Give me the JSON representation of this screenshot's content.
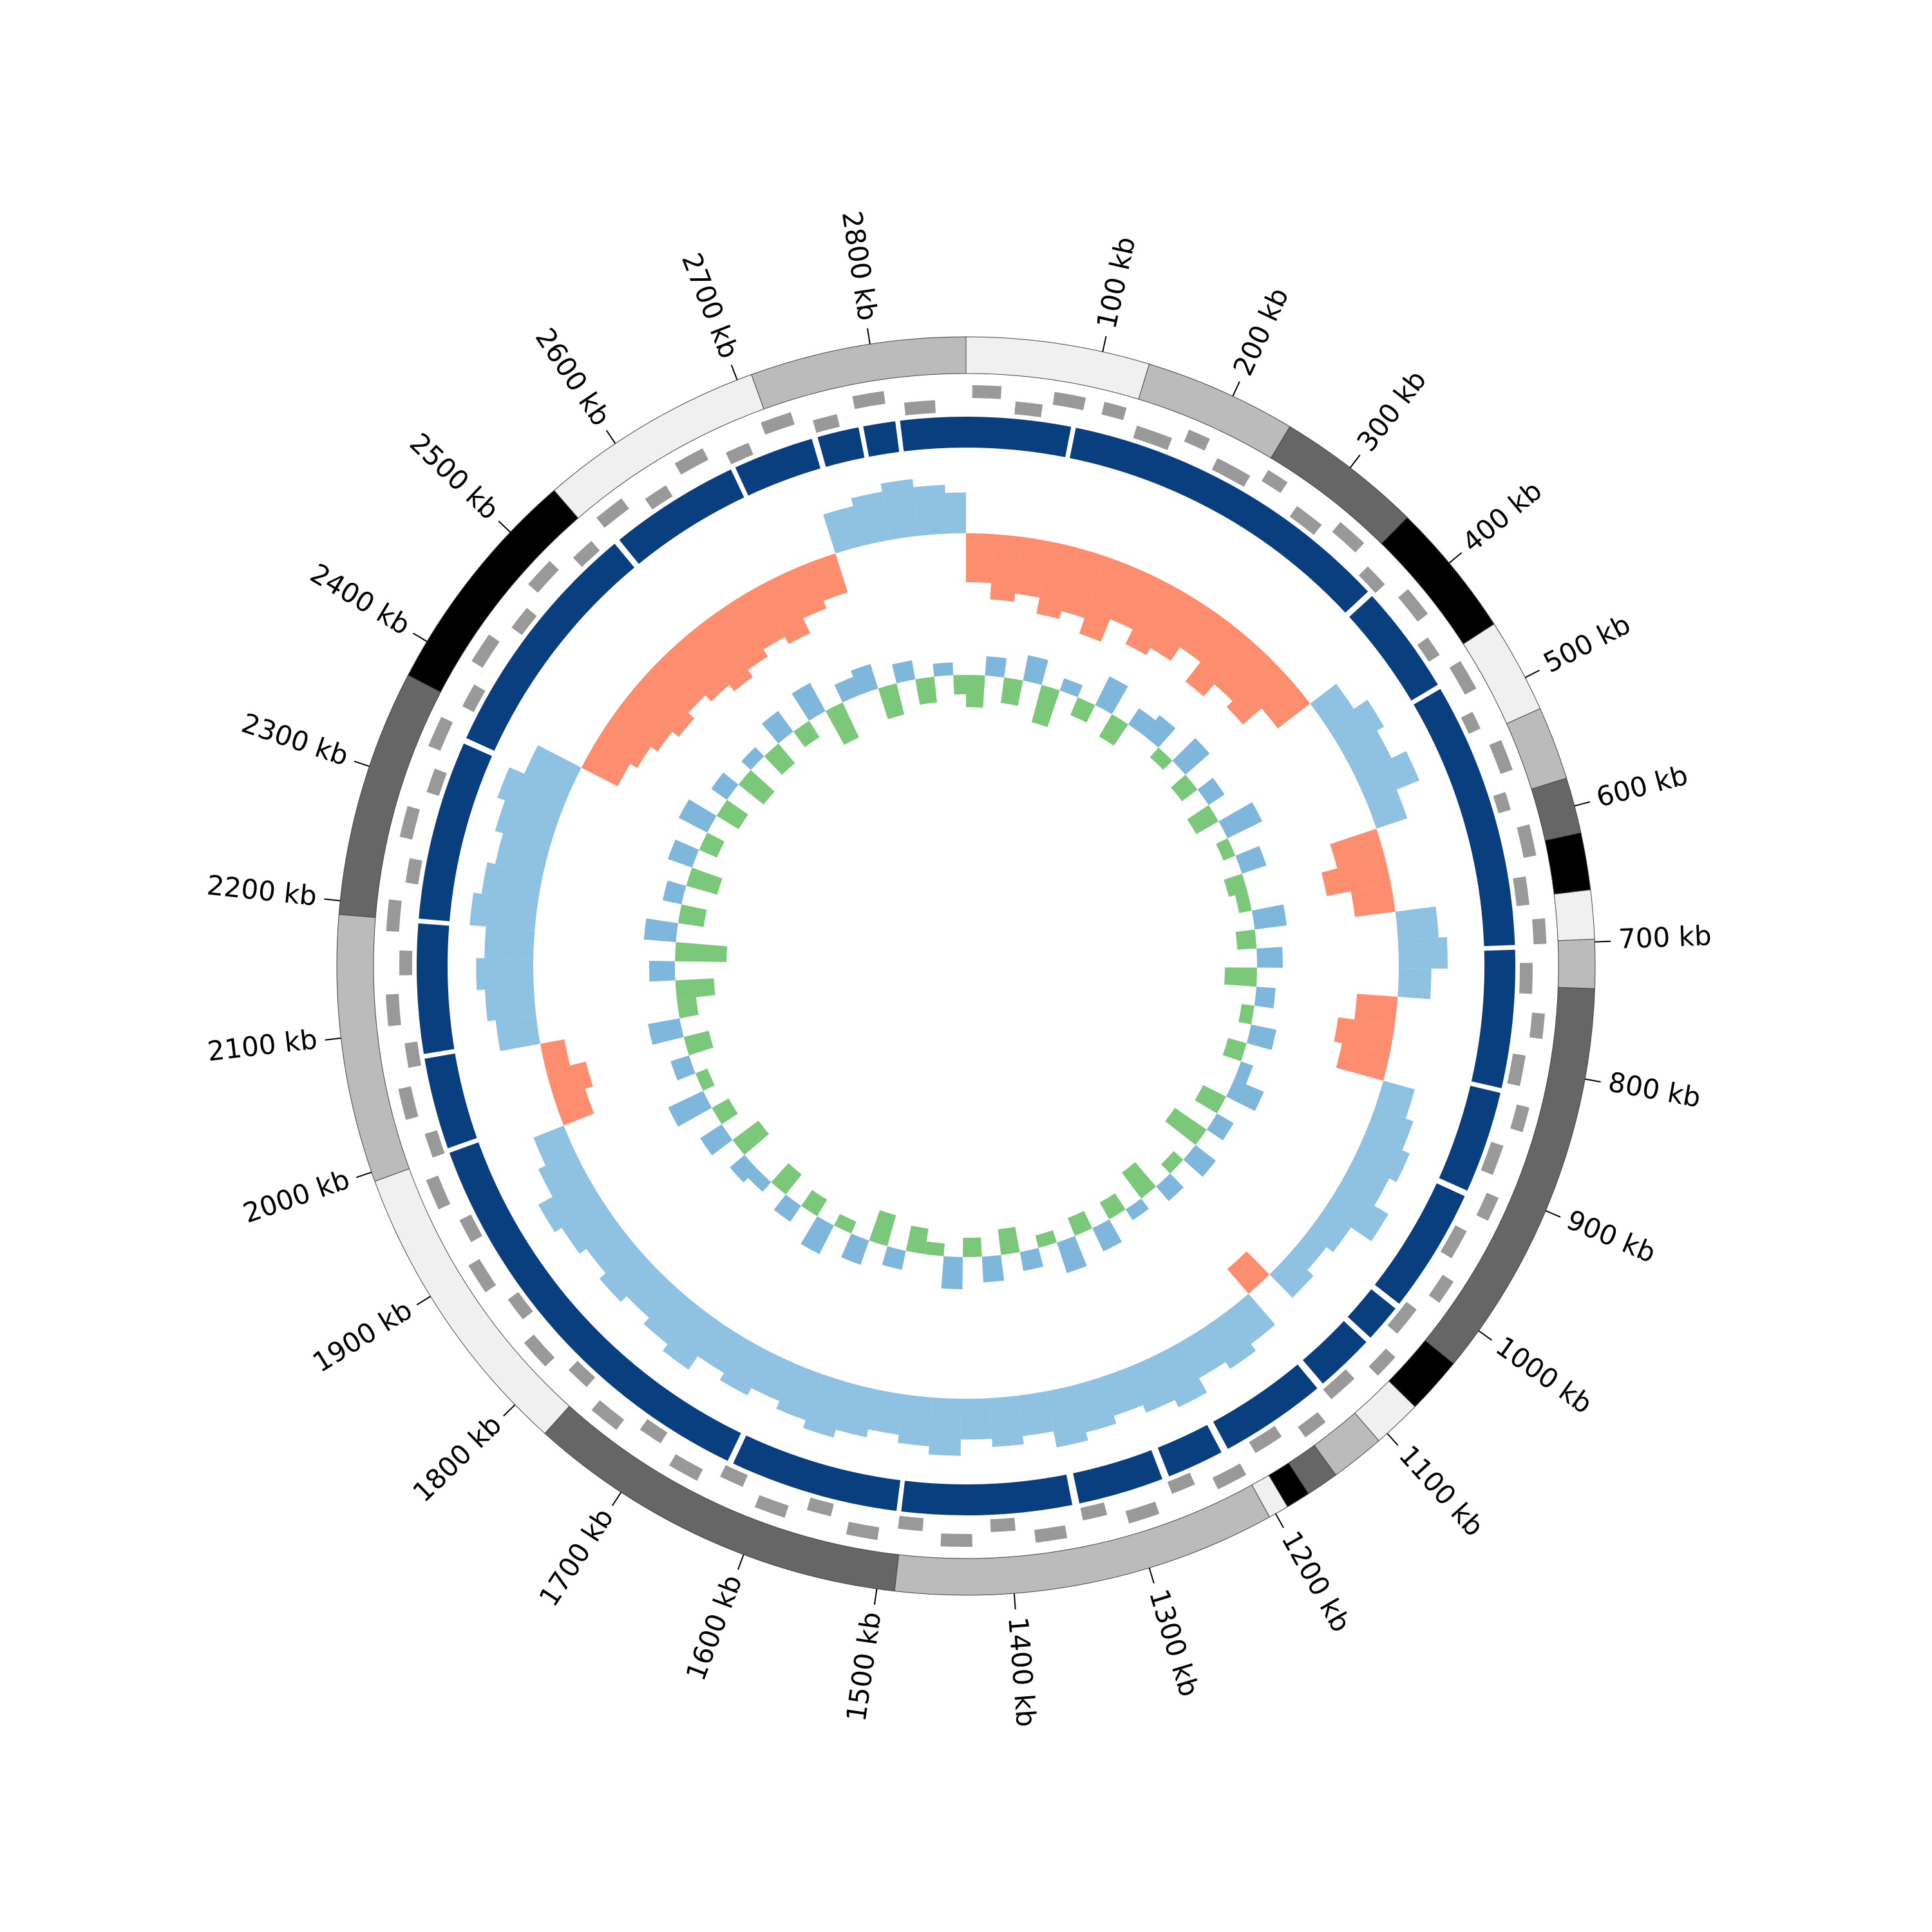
{
  "chart_data": {
    "type": "circular-genome",
    "xlim": [
      0,
      2870
    ],
    "xticks": [
      {
        "value": 100,
        "label": "100 kb"
      },
      {
        "value": 200,
        "label": "200 kb"
      },
      {
        "value": 300,
        "label": "300 kb"
      },
      {
        "value": 400,
        "label": "400 kb"
      },
      {
        "value": 500,
        "label": "500 kb"
      },
      {
        "value": 600,
        "label": "600 kb"
      },
      {
        "value": 700,
        "label": "700 kb"
      },
      {
        "value": 800,
        "label": "800 kb"
      },
      {
        "value": 900,
        "label": "900 kb"
      },
      {
        "value": 1000,
        "label": "1000 kb"
      },
      {
        "value": 1100,
        "label": "1100 kb"
      },
      {
        "value": 1200,
        "label": "1200 kb"
      },
      {
        "value": 1300,
        "label": "1300 kb"
      },
      {
        "value": 1400,
        "label": "1400 kb"
      },
      {
        "value": 1500,
        "label": "1500 kb"
      },
      {
        "value": 1600,
        "label": "1600 kb"
      },
      {
        "value": 1700,
        "label": "1700 kb"
      },
      {
        "value": 1800,
        "label": "1800 kb"
      },
      {
        "value": 1900,
        "label": "1900 kb"
      },
      {
        "value": 2000,
        "label": "2000 kb"
      },
      {
        "value": 2100,
        "label": "2100 kb"
      },
      {
        "value": 2200,
        "label": "2200 kb"
      },
      {
        "value": 2300,
        "label": "2300 kb"
      },
      {
        "value": 2400,
        "label": "2400 kb"
      },
      {
        "value": 2500,
        "label": "2500 kb"
      },
      {
        "value": 2600,
        "label": "2600 kb"
      },
      {
        "value": 2700,
        "label": "2700 kb"
      },
      {
        "value": 2800,
        "label": "2800 kb"
      }
    ],
    "bands": [
      {
        "start": 0,
        "end": 135,
        "color": "#f0f0f0"
      },
      {
        "start": 135,
        "end": 247,
        "color": "#bbbbbb"
      },
      {
        "start": 247,
        "end": 355,
        "color": "#666666"
      },
      {
        "start": 355,
        "end": 455,
        "color": "#000000"
      },
      {
        "start": 455,
        "end": 525,
        "color": "#f0f0f0"
      },
      {
        "start": 525,
        "end": 579,
        "color": "#bbbbbb"
      },
      {
        "start": 579,
        "end": 620,
        "color": "#666666"
      },
      {
        "start": 620,
        "end": 662,
        "color": "#000000"
      },
      {
        "start": 662,
        "end": 698,
        "color": "#f0f0f0"
      },
      {
        "start": 698,
        "end": 734,
        "color": "#bbbbbb"
      },
      {
        "start": 734,
        "end": 1030,
        "color": "#666666"
      },
      {
        "start": 1030,
        "end": 1072,
        "color": "#000000"
      },
      {
        "start": 1072,
        "end": 1108,
        "color": "#f0f0f0"
      },
      {
        "start": 1108,
        "end": 1148,
        "color": "#bbbbbb"
      },
      {
        "start": 1148,
        "end": 1172,
        "color": "#666666"
      },
      {
        "start": 1172,
        "end": 1190,
        "color": "#000000"
      },
      {
        "start": 1190,
        "end": 1205,
        "color": "#f0f0f0"
      },
      {
        "start": 1205,
        "end": 1487,
        "color": "#bbbbbb"
      },
      {
        "start": 1487,
        "end": 1770,
        "color": "#666666"
      },
      {
        "start": 1770,
        "end": 1993,
        "color": "#f0f0f0"
      },
      {
        "start": 1993,
        "end": 2190,
        "color": "#bbbbbb"
      },
      {
        "start": 2190,
        "end": 2372,
        "color": "#666666"
      },
      {
        "start": 2372,
        "end": 2544,
        "color": "#000000"
      },
      {
        "start": 2544,
        "end": 2711,
        "color": "#f0f0f0"
      },
      {
        "start": 2711,
        "end": 2870,
        "color": "#bbbbbb"
      }
    ],
    "gene_color": "#999999",
    "genes": [
      {
        "start": 5,
        "end": 28,
        "strand": 1
      },
      {
        "start": 40,
        "end": 62,
        "strand": -1
      },
      {
        "start": 70,
        "end": 95,
        "strand": 1
      },
      {
        "start": 110,
        "end": 128,
        "strand": 1
      },
      {
        "start": 140,
        "end": 170,
        "strand": -1
      },
      {
        "start": 180,
        "end": 198,
        "strand": 1
      },
      {
        "start": 210,
        "end": 240,
        "strand": -1
      },
      {
        "start": 250,
        "end": 268,
        "strand": 1
      },
      {
        "start": 285,
        "end": 310,
        "strand": -1
      },
      {
        "start": 320,
        "end": 345,
        "strand": 1
      },
      {
        "start": 360,
        "end": 380,
        "strand": -1
      },
      {
        "start": 395,
        "end": 420,
        "strand": 1
      },
      {
        "start": 435,
        "end": 452,
        "strand": -1
      },
      {
        "start": 465,
        "end": 490,
        "strand": 1
      },
      {
        "start": 505,
        "end": 520,
        "strand": -1
      },
      {
        "start": 535,
        "end": 560,
        "strand": 1
      },
      {
        "start": 575,
        "end": 590,
        "strand": -1
      },
      {
        "start": 605,
        "end": 630,
        "strand": 1
      },
      {
        "start": 645,
        "end": 668,
        "strand": -1
      },
      {
        "start": 680,
        "end": 700,
        "strand": 1
      },
      {
        "start": 715,
        "end": 740,
        "strand": -1
      },
      {
        "start": 755,
        "end": 775,
        "strand": 1
      },
      {
        "start": 790,
        "end": 815,
        "strand": -1
      },
      {
        "start": 830,
        "end": 850,
        "strand": 1
      },
      {
        "start": 865,
        "end": 890,
        "strand": -1
      },
      {
        "start": 905,
        "end": 925,
        "strand": 1
      },
      {
        "start": 940,
        "end": 965,
        "strand": -1
      },
      {
        "start": 980,
        "end": 1000,
        "strand": 1
      },
      {
        "start": 1015,
        "end": 1040,
        "strand": -1
      },
      {
        "start": 1055,
        "end": 1075,
        "strand": 1
      },
      {
        "start": 1090,
        "end": 1115,
        "strand": -1
      },
      {
        "start": 1130,
        "end": 1150,
        "strand": 1
      },
      {
        "start": 1165,
        "end": 1190,
        "strand": -1
      },
      {
        "start": 1205,
        "end": 1230,
        "strand": 1
      },
      {
        "start": 1245,
        "end": 1265,
        "strand": -1
      },
      {
        "start": 1280,
        "end": 1305,
        "strand": 1
      },
      {
        "start": 1320,
        "end": 1340,
        "strand": -1
      },
      {
        "start": 1355,
        "end": 1380,
        "strand": 1
      },
      {
        "start": 1395,
        "end": 1415,
        "strand": -1
      },
      {
        "start": 1430,
        "end": 1455,
        "strand": 1
      },
      {
        "start": 1470,
        "end": 1490,
        "strand": -1
      },
      {
        "start": 1505,
        "end": 1530,
        "strand": 1
      },
      {
        "start": 1545,
        "end": 1565,
        "strand": -1
      },
      {
        "start": 1580,
        "end": 1605,
        "strand": 1
      },
      {
        "start": 1620,
        "end": 1640,
        "strand": -1
      },
      {
        "start": 1655,
        "end": 1680,
        "strand": 1
      },
      {
        "start": 1695,
        "end": 1715,
        "strand": -1
      },
      {
        "start": 1730,
        "end": 1755,
        "strand": 1
      },
      {
        "start": 1770,
        "end": 1790,
        "strand": -1
      },
      {
        "start": 1805,
        "end": 1830,
        "strand": 1
      },
      {
        "start": 1845,
        "end": 1865,
        "strand": -1
      },
      {
        "start": 1880,
        "end": 1905,
        "strand": 1
      },
      {
        "start": 1920,
        "end": 1940,
        "strand": -1
      },
      {
        "start": 1955,
        "end": 1980,
        "strand": 1
      },
      {
        "start": 1995,
        "end": 2015,
        "strand": -1
      },
      {
        "start": 2030,
        "end": 2055,
        "strand": 1
      },
      {
        "start": 2070,
        "end": 2090,
        "strand": -1
      },
      {
        "start": 2105,
        "end": 2130,
        "strand": 1
      },
      {
        "start": 2145,
        "end": 2165,
        "strand": -1
      },
      {
        "start": 2180,
        "end": 2205,
        "strand": 1
      },
      {
        "start": 2220,
        "end": 2240,
        "strand": -1
      },
      {
        "start": 2255,
        "end": 2280,
        "strand": 1
      },
      {
        "start": 2295,
        "end": 2315,
        "strand": -1
      },
      {
        "start": 2330,
        "end": 2355,
        "strand": 1
      },
      {
        "start": 2370,
        "end": 2390,
        "strand": -1
      },
      {
        "start": 2405,
        "end": 2430,
        "strand": 1
      },
      {
        "start": 2445,
        "end": 2465,
        "strand": -1
      },
      {
        "start": 2480,
        "end": 2505,
        "strand": 1
      },
      {
        "start": 2520,
        "end": 2540,
        "strand": -1
      },
      {
        "start": 2555,
        "end": 2580,
        "strand": 1
      },
      {
        "start": 2595,
        "end": 2615,
        "strand": -1
      },
      {
        "start": 2630,
        "end": 2655,
        "strand": 1
      },
      {
        "start": 2670,
        "end": 2690,
        "strand": -1
      },
      {
        "start": 2705,
        "end": 2730,
        "strand": 1
      },
      {
        "start": 2745,
        "end": 2765,
        "strand": -1
      },
      {
        "start": 2780,
        "end": 2805,
        "strand": 1
      },
      {
        "start": 2820,
        "end": 2845,
        "strand": -1
      }
    ],
    "contig_color": "#0a3f7f",
    "contigs": [
      {
        "start": 0,
        "end": 88
      },
      {
        "start": 92,
        "end": 375
      },
      {
        "start": 380,
        "end": 472
      },
      {
        "start": 476,
        "end": 700
      },
      {
        "start": 704,
        "end": 820
      },
      {
        "start": 824,
        "end": 910
      },
      {
        "start": 915,
        "end": 1020
      },
      {
        "start": 1025,
        "end": 1057
      },
      {
        "start": 1062,
        "end": 1112
      },
      {
        "start": 1118,
        "end": 1208
      },
      {
        "start": 1214,
        "end": 1262
      },
      {
        "start": 1268,
        "end": 1340
      },
      {
        "start": 1346,
        "end": 1489
      },
      {
        "start": 1493,
        "end": 1635
      },
      {
        "start": 1640,
        "end": 1994
      },
      {
        "start": 1998,
        "end": 2075
      },
      {
        "start": 2079,
        "end": 2188
      },
      {
        "start": 2192,
        "end": 2343
      },
      {
        "start": 2348,
        "end": 2553
      },
      {
        "start": 2558,
        "end": 2668
      },
      {
        "start": 2672,
        "end": 2740
      },
      {
        "start": 2745,
        "end": 2780
      },
      {
        "start": 2784,
        "end": 2811
      },
      {
        "start": 2815,
        "end": 2870
      }
    ],
    "x": [
      0,
      30,
      60,
      90,
      120,
      150,
      180,
      210,
      240,
      270,
      300,
      330,
      360,
      390,
      420,
      450,
      480,
      510,
      540,
      570,
      600,
      630,
      660,
      690,
      720,
      750,
      780,
      810,
      840,
      870,
      900,
      930,
      960,
      990,
      1020,
      1050,
      1080,
      1110,
      1140,
      1170,
      1200,
      1230,
      1260,
      1290,
      1320,
      1350,
      1380,
      1410,
      1440,
      1470,
      1500,
      1530,
      1560,
      1590,
      1620,
      1650,
      1680,
      1710,
      1740,
      1770,
      1800,
      1830,
      1860,
      1890,
      1920,
      1950,
      1980,
      2010,
      2040,
      2070,
      2100,
      2130,
      2160,
      2190,
      2220,
      2250,
      2280,
      2310,
      2340,
      2370,
      2400,
      2430,
      2460,
      2490,
      2520,
      2550,
      2580,
      2610,
      2640,
      2670,
      2700,
      2730,
      2760,
      2790,
      2820,
      2850
    ],
    "gc_skew": {
      "ylim": [
        -0.15,
        0.15
      ],
      "positive_color": "#fc8d6e",
      "negative_color": "#8ec1e2",
      "values": [
        0.06,
        0.08,
        0.07,
        0.09,
        0.08,
        0.1,
        0.07,
        0.09,
        0.08,
        0.06,
        0.09,
        0.07,
        0.08,
        0.05,
        -0.04,
        -0.06,
        -0.05,
        -0.07,
        -0.04,
        0.06,
        0.08,
        0.05,
        -0.05,
        -0.06,
        -0.04,
        0.05,
        0.07,
        0.06,
        -0.04,
        -0.05,
        -0.06,
        -0.05,
        -0.07,
        -0.04,
        -0.03,
        -0.04,
        0.04,
        -0.05,
        -0.06,
        -0.05,
        -0.07,
        -0.06,
        -0.05,
        -0.06,
        -0.07,
        -0.05,
        -0.06,
        -0.05,
        -0.07,
        -0.06,
        -0.05,
        -0.06,
        -0.07,
        -0.06,
        -0.05,
        -0.06,
        -0.05,
        -0.07,
        -0.06,
        -0.05,
        -0.06,
        -0.05,
        -0.06,
        -0.07,
        -0.05,
        -0.04,
        0.04,
        0.05,
        0.03,
        -0.05,
        -0.06,
        -0.07,
        -0.06,
        -0.08,
        -0.07,
        -0.06,
        -0.07,
        -0.08,
        -0.06,
        0.05,
        0.06,
        0.07,
        0.08,
        0.07,
        0.08,
        0.09,
        0.08,
        0.07,
        0.08,
        0.06,
        0.05,
        -0.05,
        -0.06,
        -0.07,
        -0.06,
        -0.05
      ]
    },
    "gc_content": {
      "ylim": [
        -0.15,
        0.15
      ],
      "positive_color": "#7cc87a",
      "negative_color": "#7fb6dc",
      "values": [
        0.05,
        -0.03,
        0.04,
        -0.04,
        0.06,
        -0.02,
        0.03,
        -0.05,
        0.04,
        -0.03,
        -0.04,
        0.02,
        -0.05,
        0.03,
        -0.03,
        0.04,
        -0.06,
        0.02,
        -0.04,
        0.03,
        0.02,
        -0.05,
        0.03,
        -0.04,
        0.05,
        -0.03,
        0.02,
        -0.04,
        0.03,
        -0.02,
        -0.05,
        0.04,
        -0.03,
        0.06,
        -0.04,
        0.02,
        -0.03,
        0.05,
        -0.02,
        0.03,
        -0.04,
        0.03,
        -0.05,
        0.02,
        -0.03,
        0.04,
        -0.04,
        0.03,
        -0.05,
        0.02,
        0.04,
        -0.03,
        0.05,
        -0.04,
        0.02,
        -0.05,
        0.03,
        -0.03,
        0.04,
        -0.02,
        -0.03,
        0.05,
        -0.04,
        0.03,
        -0.06,
        0.02,
        -0.03,
        0.04,
        -0.05,
        0.03,
        0.06,
        -0.04,
        0.08,
        -0.05,
        0.04,
        -0.03,
        0.05,
        -0.04,
        0.03,
        -0.05,
        0.04,
        -0.03,
        0.05,
        -0.02,
        0.04,
        -0.04,
        0.03,
        -0.05,
        0.06,
        -0.03,
        -0.04,
        0.05,
        -0.03,
        0.04,
        -0.02,
        0.03
      ]
    }
  }
}
